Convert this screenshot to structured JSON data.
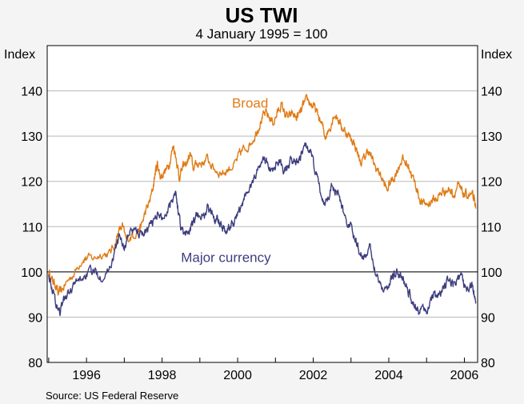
{
  "chart_data": {
    "type": "line",
    "title": "US TWI",
    "subtitle": "4 January 1995 = 100",
    "ylabel_left": "Index",
    "ylabel_right": "Index",
    "xlabel": "",
    "ylim": [
      80,
      150
    ],
    "yticks": [
      80,
      90,
      100,
      110,
      120,
      130,
      140
    ],
    "xlim": [
      1994.96,
      2006.35
    ],
    "xticks": [
      1996,
      1998,
      2000,
      2002,
      2004,
      2006
    ],
    "xtick_labels": [
      "1996",
      "1998",
      "2000",
      "2002",
      "2004",
      "2006"
    ],
    "reference_line": 100,
    "grid": true,
    "source": "Source: US Federal Reserve",
    "series": [
      {
        "name": "Broad",
        "color": "#e07b16",
        "points": [
          [
            1995.0,
            100
          ],
          [
            1995.1,
            98
          ],
          [
            1995.2,
            97
          ],
          [
            1995.25,
            95
          ],
          [
            1995.35,
            96
          ],
          [
            1995.5,
            98
          ],
          [
            1995.7,
            100
          ],
          [
            1995.9,
            103
          ],
          [
            1996.0,
            103
          ],
          [
            1996.2,
            103
          ],
          [
            1996.4,
            104
          ],
          [
            1996.6,
            104
          ],
          [
            1996.75,
            106
          ],
          [
            1996.85,
            109
          ],
          [
            1996.95,
            110
          ],
          [
            1997.05,
            107
          ],
          [
            1997.2,
            108
          ],
          [
            1997.35,
            109
          ],
          [
            1997.45,
            110
          ],
          [
            1997.55,
            113
          ],
          [
            1997.65,
            115
          ],
          [
            1997.75,
            118
          ],
          [
            1997.82,
            122
          ],
          [
            1997.88,
            124
          ],
          [
            1997.95,
            121
          ],
          [
            1998.05,
            122
          ],
          [
            1998.15,
            123
          ],
          [
            1998.22,
            125
          ],
          [
            1998.3,
            128
          ],
          [
            1998.38,
            125
          ],
          [
            1998.45,
            121
          ],
          [
            1998.55,
            123
          ],
          [
            1998.65,
            124
          ],
          [
            1998.75,
            126
          ],
          [
            1998.82,
            123
          ],
          [
            1998.95,
            124
          ],
          [
            1999.05,
            124
          ],
          [
            1999.2,
            125
          ],
          [
            1999.35,
            123
          ],
          [
            1999.5,
            122
          ],
          [
            1999.65,
            122
          ],
          [
            1999.8,
            123
          ],
          [
            1999.95,
            124
          ],
          [
            2000.05,
            126
          ],
          [
            2000.15,
            127
          ],
          [
            2000.3,
            128
          ],
          [
            2000.45,
            130
          ],
          [
            2000.55,
            132
          ],
          [
            2000.65,
            134
          ],
          [
            2000.75,
            135
          ],
          [
            2000.85,
            134
          ],
          [
            2000.95,
            133
          ],
          [
            2001.05,
            135
          ],
          [
            2001.15,
            137
          ],
          [
            2001.25,
            135
          ],
          [
            2001.35,
            134
          ],
          [
            2001.45,
            135
          ],
          [
            2001.55,
            134
          ],
          [
            2001.65,
            135
          ],
          [
            2001.75,
            137
          ],
          [
            2001.85,
            138
          ],
          [
            2001.95,
            137
          ],
          [
            2002.05,
            136
          ],
          [
            2002.15,
            134
          ],
          [
            2002.25,
            132
          ],
          [
            2002.32,
            130
          ],
          [
            2002.45,
            132
          ],
          [
            2002.55,
            135
          ],
          [
            2002.65,
            134
          ],
          [
            2002.75,
            132
          ],
          [
            2002.85,
            131
          ],
          [
            2002.95,
            130
          ],
          [
            2003.05,
            129
          ],
          [
            2003.15,
            127
          ],
          [
            2003.25,
            124
          ],
          [
            2003.35,
            125
          ],
          [
            2003.45,
            127
          ],
          [
            2003.55,
            125
          ],
          [
            2003.65,
            123
          ],
          [
            2003.75,
            122
          ],
          [
            2003.85,
            120
          ],
          [
            2003.95,
            118
          ],
          [
            2004.05,
            120
          ],
          [
            2004.15,
            121
          ],
          [
            2004.25,
            123
          ],
          [
            2004.35,
            125
          ],
          [
            2004.45,
            124
          ],
          [
            2004.55,
            123
          ],
          [
            2004.62,
            121
          ],
          [
            2004.72,
            119
          ],
          [
            2004.82,
            116
          ],
          [
            2004.92,
            115
          ],
          [
            2005.05,
            115
          ],
          [
            2005.15,
            116
          ],
          [
            2005.25,
            116
          ],
          [
            2005.35,
            117
          ],
          [
            2005.45,
            118
          ],
          [
            2005.55,
            118
          ],
          [
            2005.65,
            118
          ],
          [
            2005.72,
            117
          ],
          [
            2005.82,
            119
          ],
          [
            2005.9,
            118
          ],
          [
            2006.0,
            117
          ],
          [
            2006.1,
            117
          ],
          [
            2006.2,
            117
          ],
          [
            2006.25,
            116
          ],
          [
            2006.3,
            114
          ]
        ]
      },
      {
        "name": "Major currency",
        "color": "#3d3d7e",
        "points": [
          [
            1995.0,
            100
          ],
          [
            1995.1,
            96
          ],
          [
            1995.2,
            93
          ],
          [
            1995.3,
            91
          ],
          [
            1995.4,
            94
          ],
          [
            1995.5,
            95
          ],
          [
            1995.65,
            97
          ],
          [
            1995.8,
            98
          ],
          [
            1995.95,
            99
          ],
          [
            1996.1,
            100
          ],
          [
            1996.25,
            100
          ],
          [
            1996.4,
            99
          ],
          [
            1996.55,
            100
          ],
          [
            1996.7,
            103
          ],
          [
            1996.8,
            106
          ],
          [
            1996.9,
            108
          ],
          [
            1997.0,
            105
          ],
          [
            1997.1,
            108
          ],
          [
            1997.2,
            109
          ],
          [
            1997.35,
            109
          ],
          [
            1997.45,
            108
          ],
          [
            1997.55,
            109
          ],
          [
            1997.65,
            110
          ],
          [
            1997.75,
            111
          ],
          [
            1997.85,
            113
          ],
          [
            1997.95,
            112
          ],
          [
            1998.05,
            112
          ],
          [
            1998.15,
            114
          ],
          [
            1998.25,
            116
          ],
          [
            1998.35,
            118
          ],
          [
            1998.42,
            114
          ],
          [
            1998.5,
            110
          ],
          [
            1998.6,
            108
          ],
          [
            1998.7,
            109
          ],
          [
            1998.8,
            110
          ],
          [
            1998.9,
            112
          ],
          [
            1999.0,
            113
          ],
          [
            1999.1,
            112
          ],
          [
            1999.2,
            114
          ],
          [
            1999.3,
            113
          ],
          [
            1999.4,
            112
          ],
          [
            1999.5,
            112
          ],
          [
            1999.6,
            110
          ],
          [
            1999.7,
            109
          ],
          [
            1999.8,
            110
          ],
          [
            1999.9,
            111
          ],
          [
            2000.0,
            113
          ],
          [
            2000.1,
            114
          ],
          [
            2000.2,
            117
          ],
          [
            2000.3,
            118
          ],
          [
            2000.4,
            120
          ],
          [
            2000.5,
            122
          ],
          [
            2000.6,
            124
          ],
          [
            2000.7,
            125
          ],
          [
            2000.8,
            124
          ],
          [
            2000.9,
            122
          ],
          [
            2001.0,
            124
          ],
          [
            2001.1,
            125
          ],
          [
            2001.2,
            123
          ],
          [
            2001.3,
            122
          ],
          [
            2001.4,
            124
          ],
          [
            2001.5,
            125
          ],
          [
            2001.6,
            124
          ],
          [
            2001.7,
            126
          ],
          [
            2001.8,
            128
          ],
          [
            2001.9,
            127
          ],
          [
            2002.0,
            124
          ],
          [
            2002.1,
            121
          ],
          [
            2002.2,
            117
          ],
          [
            2002.3,
            115
          ],
          [
            2002.4,
            117
          ],
          [
            2002.5,
            119
          ],
          [
            2002.6,
            118
          ],
          [
            2002.7,
            116
          ],
          [
            2002.8,
            113
          ],
          [
            2002.9,
            111
          ],
          [
            2003.0,
            110
          ],
          [
            2003.1,
            107
          ],
          [
            2003.2,
            105
          ],
          [
            2003.3,
            103
          ],
          [
            2003.4,
            104
          ],
          [
            2003.5,
            105
          ],
          [
            2003.6,
            102
          ],
          [
            2003.7,
            99
          ],
          [
            2003.8,
            97
          ],
          [
            2003.9,
            96
          ],
          [
            2004.0,
            97
          ],
          [
            2004.1,
            99
          ],
          [
            2004.2,
            100
          ],
          [
            2004.3,
            99
          ],
          [
            2004.4,
            98
          ],
          [
            2004.5,
            96
          ],
          [
            2004.6,
            94
          ],
          [
            2004.7,
            92
          ],
          [
            2004.8,
            91
          ],
          [
            2004.9,
            93
          ],
          [
            2005.0,
            91
          ],
          [
            2005.1,
            94
          ],
          [
            2005.2,
            95
          ],
          [
            2005.3,
            94
          ],
          [
            2005.4,
            96
          ],
          [
            2005.5,
            97
          ],
          [
            2005.6,
            98
          ],
          [
            2005.7,
            97
          ],
          [
            2005.8,
            98
          ],
          [
            2005.9,
            99
          ],
          [
            2006.0,
            97
          ],
          [
            2006.1,
            96
          ],
          [
            2006.2,
            97
          ],
          [
            2006.25,
            96
          ],
          [
            2006.3,
            93
          ]
        ]
      }
    ],
    "series_labels": [
      {
        "text": "Broad",
        "x": 1999.85,
        "y": 136.3
      },
      {
        "text": "Major currency",
        "x": 1998.5,
        "y": 102.2
      }
    ]
  }
}
